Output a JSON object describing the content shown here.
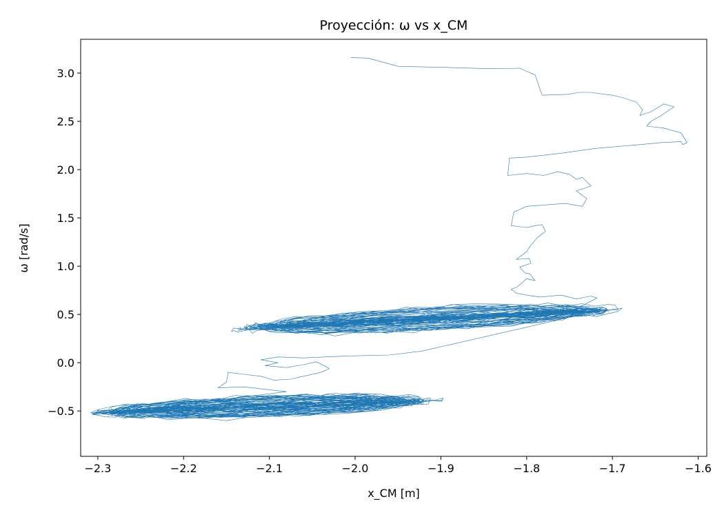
{
  "chart_data": {
    "type": "line",
    "title": "Proyección: ω vs x_CM",
    "xlabel": "x_CM [m]",
    "ylabel": "ω [rad/s]",
    "xlim": [
      -2.32,
      -1.59
    ],
    "ylim": [
      -0.97,
      3.35
    ],
    "xticks": [
      -2.3,
      -2.2,
      -2.1,
      -2.0,
      -1.9,
      -1.8,
      -1.7,
      -1.6
    ],
    "xtick_labels": [
      "−2.3",
      "−2.2",
      "−2.1",
      "−2.0",
      "−1.9",
      "−1.8",
      "−1.7",
      "−1.6"
    ],
    "yticks": [
      -0.5,
      0.0,
      0.5,
      1.0,
      1.5,
      2.0,
      2.5,
      3.0
    ],
    "ytick_labels": [
      "−0.5",
      "0.0",
      "0.5",
      "1.0",
      "1.5",
      "2.0",
      "2.5",
      "3.0"
    ],
    "grid": false,
    "line_color": "#1f77b4",
    "series": [
      {
        "transient": {
          "x": [
            -2.005,
            -1.985,
            -1.95,
            -1.9,
            -1.845,
            -1.808,
            -1.79,
            -1.782,
            -1.752,
            -1.738,
            -1.726,
            -1.7,
            -1.69,
            -1.672,
            -1.665,
            -1.668,
            -1.655,
            -1.64,
            -1.628,
            -1.645,
            -1.655,
            -1.66,
            -1.64,
            -1.62,
            -1.613,
            -1.618,
            -1.62,
            -1.642,
            -1.68,
            -1.72,
            -1.76,
            -1.8,
            -1.82,
            -1.822,
            -1.8,
            -1.78,
            -1.764,
            -1.75,
            -1.742,
            -1.735,
            -1.725,
            -1.742,
            -1.73,
            -1.735,
            -1.755,
            -1.8,
            -1.815,
            -1.818,
            -1.8,
            -1.79,
            -1.782,
            -1.778,
            -1.787,
            -1.795,
            -1.8,
            -1.812,
            -1.797,
            -1.795,
            -1.808,
            -1.802,
            -1.796,
            -1.793,
            -1.79,
            -1.8,
            -1.805,
            -1.812,
            -1.818,
            -1.812,
            -1.8,
            -1.785,
            -1.76,
            -1.742,
            -1.725,
            -1.718
          ],
          "y": [
            3.16,
            3.155,
            3.07,
            3.06,
            3.045,
            3.05,
            2.98,
            2.77,
            2.78,
            2.8,
            2.8,
            2.77,
            2.75,
            2.7,
            2.62,
            2.56,
            2.6,
            2.68,
            2.65,
            2.55,
            2.5,
            2.45,
            2.43,
            2.38,
            2.28,
            2.26,
            2.29,
            2.28,
            2.25,
            2.22,
            2.17,
            2.13,
            2.12,
            1.94,
            1.96,
            1.94,
            1.98,
            1.95,
            1.9,
            1.92,
            1.83,
            1.78,
            1.7,
            1.62,
            1.65,
            1.62,
            1.56,
            1.42,
            1.4,
            1.42,
            1.43,
            1.36,
            1.3,
            1.22,
            1.15,
            1.07,
            1.08,
            1.03,
            0.99,
            0.93,
            0.92,
            0.88,
            0.85,
            0.87,
            0.83,
            0.78,
            0.76,
            0.72,
            0.7,
            0.68,
            0.7,
            0.66,
            0.69,
            0.67
          ]
        },
        "upper_cluster": {
          "x_range": [
            -2.12,
            -1.71
          ],
          "center": [
            -1.92,
            0.45
          ],
          "slope": 1.05,
          "minor_range": [
            -0.2,
            0.24
          ],
          "loops": 40
        },
        "lower_cluster": {
          "x_range": [
            -2.285,
            -1.9
          ],
          "center": [
            -2.1,
            -0.45
          ],
          "slope": 0.75,
          "minor_range": [
            -0.18,
            0.2
          ],
          "loops": 40
        },
        "bridge": {
          "x": [
            -1.922,
            -1.96,
            -2.01,
            -2.06,
            -2.09,
            -2.11,
            -2.09,
            -2.105,
            -2.08,
            -2.06,
            -2.045,
            -2.03,
            -2.04,
            -2.06,
            -2.075,
            -2.095,
            -2.11,
            -2.13,
            -2.148,
            -2.15,
            -2.16,
            -2.13,
            -2.1,
            -2.08
          ],
          "y": [
            0.12,
            0.08,
            0.07,
            0.05,
            0.06,
            0.03,
            0.0,
            -0.03,
            -0.05,
            -0.02,
            0.01,
            -0.06,
            -0.1,
            -0.14,
            -0.17,
            -0.18,
            -0.14,
            -0.12,
            -0.1,
            -0.2,
            -0.26,
            -0.25,
            -0.28,
            -0.3
          ]
        }
      }
    ]
  }
}
